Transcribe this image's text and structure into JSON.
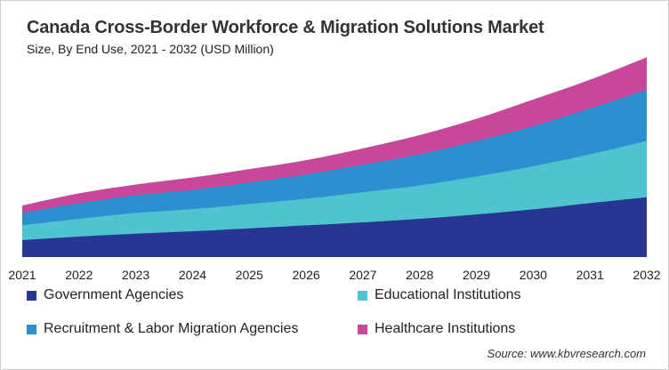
{
  "title": "Canada Cross-Border Workforce & Migration Solutions Market",
  "subtitle": "Size, By End Use, 2021 - 2032 (USD Million)",
  "source": "Source: www.kbvresearch.com",
  "chart_data": {
    "type": "area",
    "stacked": true,
    "title": "Canada Cross-Border Workforce & Migration Solutions Market",
    "subtitle": "Size, By End Use, 2021 - 2032 (USD Million)",
    "x": [
      "2021",
      "2022",
      "2023",
      "2024",
      "2025",
      "2026",
      "2027",
      "2028",
      "2029",
      "2030",
      "2031",
      "2032"
    ],
    "ylim": [
      0,
      700
    ],
    "y_axis_visible": false,
    "grid": false,
    "legend_placement": "bottom",
    "series": [
      {
        "name": "Government Agencies",
        "color": "#283593",
        "values": [
          57,
          69,
          79,
          87,
          97,
          107,
          117,
          129,
          144,
          161,
          182,
          202
        ]
      },
      {
        "name": "Educational Institutions",
        "color": "#4fc3cf",
        "values": [
          50,
          60,
          70,
          75,
          82,
          90,
          102,
          113,
          128,
          146,
          165,
          190
        ]
      },
      {
        "name": "Recruitment & Labor Migration Agencies",
        "color": "#2b8fd0",
        "values": [
          42,
          53,
          60,
          65,
          73,
          82,
          93,
          105,
          120,
          135,
          155,
          173
        ]
      },
      {
        "name": "Healthcare Institutions",
        "color": "#c9479a",
        "values": [
          25,
          33,
          36,
          42,
          45,
          48,
          55,
          65,
          75,
          90,
          97,
          110
        ]
      }
    ]
  }
}
